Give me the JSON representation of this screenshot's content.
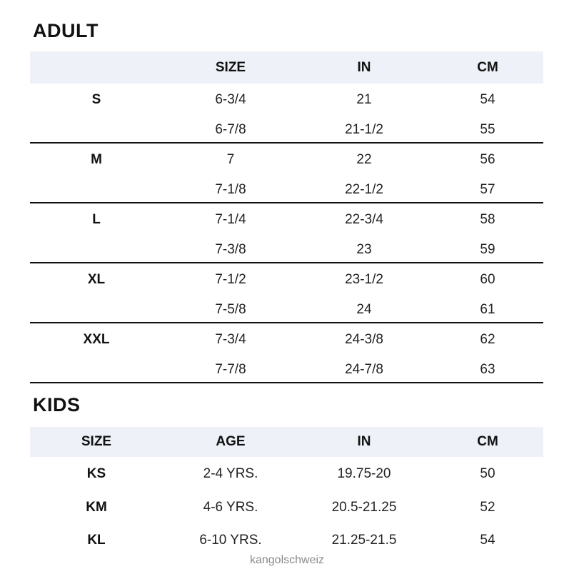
{
  "adult": {
    "title": "ADULT",
    "headers": [
      "",
      "SIZE",
      "IN",
      "CM"
    ],
    "rows": [
      [
        "S",
        "6-3/4",
        "21",
        "54"
      ],
      [
        "",
        "6-7/8",
        "21-1/2",
        "55"
      ],
      [
        "M",
        "7",
        "22",
        "56"
      ],
      [
        "",
        "7-1/8",
        "22-1/2",
        "57"
      ],
      [
        "L",
        "7-1/4",
        "22-3/4",
        "58"
      ],
      [
        "",
        "7-3/8",
        "23",
        "59"
      ],
      [
        "XL",
        "7-1/2",
        "23-1/2",
        "60"
      ],
      [
        "",
        "7-5/8",
        "24",
        "61"
      ],
      [
        "XXL",
        "7-3/4",
        "24-3/8",
        "62"
      ],
      [
        "",
        "7-7/8",
        "24-7/8",
        "63"
      ]
    ]
  },
  "kids": {
    "title": "KIDS",
    "headers": [
      "SIZE",
      "AGE",
      "IN",
      "CM"
    ],
    "rows": [
      [
        "KS",
        "2-4 YRS.",
        "19.75-20",
        "50"
      ],
      [
        "KM",
        "4-6 YRS.",
        "20.5-21.25",
        "52"
      ],
      [
        "KL",
        "6-10 YRS.",
        "21.25-21.5",
        "54"
      ]
    ]
  },
  "watermark": "kangolschweiz",
  "colors": {
    "header_band": "#eef2f8",
    "divider": "#111111"
  }
}
